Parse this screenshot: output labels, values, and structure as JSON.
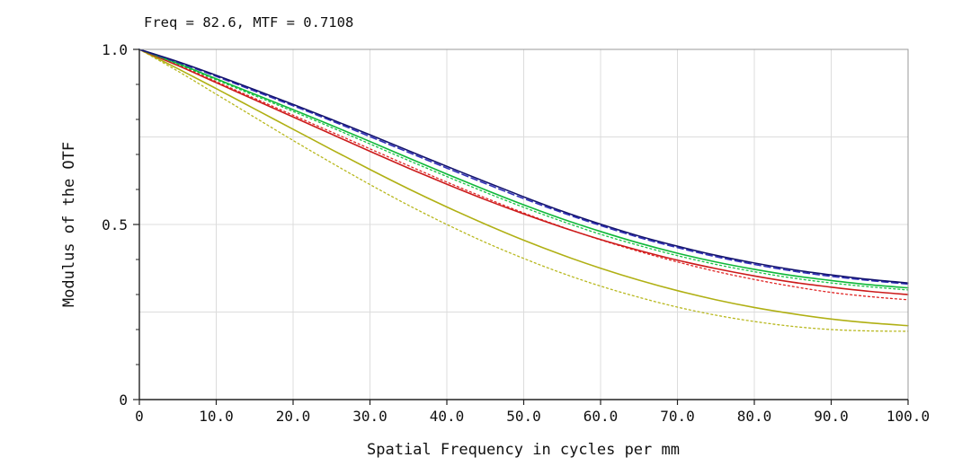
{
  "chart_data": {
    "type": "line",
    "title": "Freq = 82.6, MTF = 0.7108",
    "xlabel": "Spatial Frequency in cycles per mm",
    "ylabel": "Modulus of the OTF",
    "xlim": [
      0,
      100
    ],
    "ylim": [
      0,
      1.0
    ],
    "grid": true,
    "legend_position": "none",
    "x_ticks": [
      {
        "value": 0,
        "label": "0"
      },
      {
        "value": 10,
        "label": "10.0"
      },
      {
        "value": 20,
        "label": "20.0"
      },
      {
        "value": 30,
        "label": "30.0"
      },
      {
        "value": 40,
        "label": "40.0"
      },
      {
        "value": 50,
        "label": "50.0"
      },
      {
        "value": 60,
        "label": "60.0"
      },
      {
        "value": 70,
        "label": "70.0"
      },
      {
        "value": 80,
        "label": "80.0"
      },
      {
        "value": 90,
        "label": "90.0"
      },
      {
        "value": 100,
        "label": "100.0"
      }
    ],
    "y_ticks": [
      {
        "value": 0,
        "label": "0"
      },
      {
        "value": 0.5,
        "label": "0.5"
      },
      {
        "value": 1.0,
        "label": "1.0"
      }
    ],
    "y_minor_ticks": [
      0.1,
      0.2,
      0.3,
      0.4,
      0.6,
      0.7,
      0.8,
      0.9
    ],
    "y_gridlines": [
      0.25,
      0.5,
      0.75
    ],
    "x": [
      0,
      5,
      10,
      15,
      20,
      25,
      30,
      35,
      40,
      45,
      50,
      55,
      60,
      65,
      70,
      75,
      80,
      85,
      90,
      95,
      100
    ],
    "series": [
      {
        "name": "yellow-dotted",
        "color": "#b8b81e",
        "style": "dotted",
        "values": [
          1.0,
          0.938,
          0.872,
          0.806,
          0.74,
          0.676,
          0.614,
          0.555,
          0.5,
          0.449,
          0.403,
          0.361,
          0.324,
          0.292,
          0.264,
          0.241,
          0.223,
          0.209,
          0.2,
          0.196,
          0.195
        ]
      },
      {
        "name": "yellow-solid",
        "color": "#b0b014",
        "style": "solid",
        "values": [
          1.0,
          0.945,
          0.888,
          0.83,
          0.772,
          0.714,
          0.657,
          0.602,
          0.55,
          0.501,
          0.455,
          0.413,
          0.375,
          0.341,
          0.311,
          0.285,
          0.263,
          0.245,
          0.23,
          0.219,
          0.211
        ]
      },
      {
        "name": "red-dotted",
        "color": "#e02424",
        "style": "dotted",
        "values": [
          1.0,
          0.956,
          0.908,
          0.86,
          0.812,
          0.764,
          0.716,
          0.668,
          0.621,
          0.576,
          0.533,
          0.493,
          0.456,
          0.423,
          0.393,
          0.366,
          0.343,
          0.323,
          0.306,
          0.294,
          0.285
        ]
      },
      {
        "name": "red-solid",
        "color": "#cc1b1b",
        "style": "solid",
        "values": [
          1.0,
          0.954,
          0.905,
          0.856,
          0.807,
          0.758,
          0.709,
          0.661,
          0.615,
          0.571,
          0.53,
          0.492,
          0.457,
          0.426,
          0.398,
          0.374,
          0.353,
          0.335,
          0.321,
          0.309,
          0.3
        ]
      },
      {
        "name": "green-dotted",
        "color": "#18c244",
        "style": "dotted",
        "values": [
          1.0,
          0.958,
          0.913,
          0.868,
          0.823,
          0.777,
          0.73,
          0.683,
          0.637,
          0.592,
          0.549,
          0.509,
          0.472,
          0.44,
          0.411,
          0.386,
          0.365,
          0.347,
          0.333,
          0.322,
          0.313
        ]
      },
      {
        "name": "green-solid",
        "color": "#0fb83a",
        "style": "solid",
        "values": [
          1.0,
          0.96,
          0.916,
          0.872,
          0.828,
          0.783,
          0.737,
          0.69,
          0.644,
          0.599,
          0.556,
          0.516,
          0.48,
          0.447,
          0.418,
          0.393,
          0.372,
          0.354,
          0.34,
          0.328,
          0.319
        ]
      },
      {
        "name": "blue-dashed",
        "color": "#3030b8",
        "style": "dashed",
        "values": [
          1.0,
          0.963,
          0.923,
          0.881,
          0.839,
          0.796,
          0.751,
          0.706,
          0.661,
          0.617,
          0.574,
          0.534,
          0.497,
          0.463,
          0.434,
          0.408,
          0.386,
          0.367,
          0.352,
          0.34,
          0.33
        ]
      },
      {
        "name": "blue-solid",
        "color": "#14146e",
        "style": "solid",
        "values": [
          1.0,
          0.965,
          0.926,
          0.885,
          0.843,
          0.8,
          0.756,
          0.711,
          0.666,
          0.622,
          0.579,
          0.538,
          0.501,
          0.467,
          0.438,
          0.412,
          0.39,
          0.371,
          0.356,
          0.343,
          0.333
        ]
      }
    ]
  }
}
